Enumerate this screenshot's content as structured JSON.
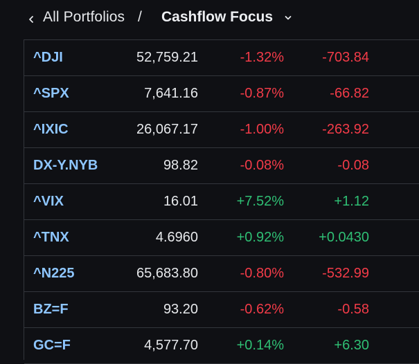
{
  "breadcrumb": {
    "parent_label": "All Portfolios",
    "separator": "/",
    "current_label": "Cashflow Focus"
  },
  "colors": {
    "background": "#0f1014",
    "symbol": "#8ec6ff",
    "negative": "#f23b48",
    "positive": "#2fbf74",
    "text": "#e6e8eb"
  },
  "icons": {
    "back": "chevron-left-icon",
    "dropdown": "chevron-down-icon"
  },
  "quotes": [
    {
      "symbol": "^DJI",
      "price": "52,759.21",
      "change_pct": "-1.32%",
      "change": "-703.84",
      "direction": "down"
    },
    {
      "symbol": "^SPX",
      "price": "7,641.16",
      "change_pct": "-0.87%",
      "change": "-66.82",
      "direction": "down"
    },
    {
      "symbol": "^IXIC",
      "price": "26,067.17",
      "change_pct": "-1.00%",
      "change": "-263.92",
      "direction": "down"
    },
    {
      "symbol": "DX-Y.NYB",
      "price": "98.82",
      "change_pct": "-0.08%",
      "change": "-0.08",
      "direction": "down"
    },
    {
      "symbol": "^VIX",
      "price": "16.01",
      "change_pct": "+7.52%",
      "change": "+1.12",
      "direction": "up"
    },
    {
      "symbol": "^TNX",
      "price": "4.6960",
      "change_pct": "+0.92%",
      "change": "+0.0430",
      "direction": "up"
    },
    {
      "symbol": "^N225",
      "price": "65,683.80",
      "change_pct": "-0.80%",
      "change": "-532.99",
      "direction": "down"
    },
    {
      "symbol": "BZ=F",
      "price": "93.20",
      "change_pct": "-0.62%",
      "change": "-0.58",
      "direction": "down"
    },
    {
      "symbol": "GC=F",
      "price": "4,577.70",
      "change_pct": "+0.14%",
      "change": "+6.30",
      "direction": "up"
    }
  ]
}
